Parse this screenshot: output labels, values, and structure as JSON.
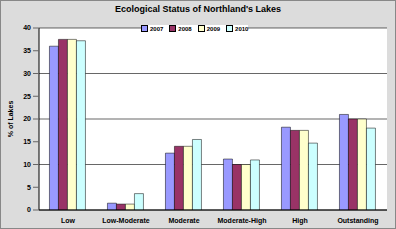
{
  "chart_data": {
    "type": "bar",
    "title": "Ecological Status of Northland's Lakes",
    "y_label": "% of Lakes",
    "categories": [
      "Low",
      "Low-Moderate",
      "Moderate",
      "Moderate-High",
      "High",
      "Outstanding"
    ],
    "series": [
      {
        "name": "2007",
        "color": "#9999ff",
        "values": [
          36,
          1.5,
          12.5,
          11.2,
          18.2,
          21
        ]
      },
      {
        "name": "2008",
        "color": "#993366",
        "values": [
          37.5,
          1.3,
          14,
          10,
          17.5,
          20
        ]
      },
      {
        "name": "2009",
        "color": "#ffffcc",
        "values": [
          37.5,
          1.3,
          14,
          10,
          17.5,
          20
        ]
      },
      {
        "name": "2010",
        "color": "#ccffff",
        "values": [
          37.2,
          3.6,
          15.5,
          11,
          14.7,
          18
        ]
      }
    ],
    "ylim": [
      0,
      40
    ],
    "yticks": [
      0,
      5,
      10,
      15,
      20,
      25,
      30,
      35,
      40
    ],
    "grid": true,
    "legend": "top"
  }
}
